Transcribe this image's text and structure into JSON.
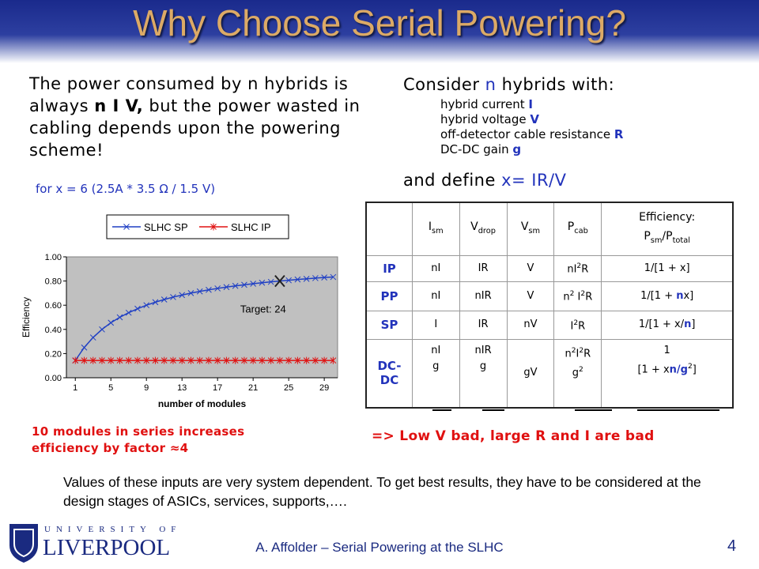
{
  "header": {
    "title": "Why Choose Serial Powering?"
  },
  "left": {
    "paragraph": [
      "The power consumed by n hybrids is always ",
      {
        "b": "n I V,"
      },
      " but the power wasted in cabling depends upon the powering scheme!"
    ],
    "example": "for x = 6 (2.5A * 3.5 Ω  / 1.5 V)",
    "note": "10 modules in series increases efficiency by factor ≈4"
  },
  "right": {
    "consider": [
      "Consider ",
      {
        "em": "n"
      },
      " hybrids with:"
    ],
    "items": [
      [
        "hybrid current ",
        {
          "em": "I"
        }
      ],
      [
        "hybrid voltage ",
        {
          "em": "V"
        }
      ],
      [
        "off-detector cable resistance ",
        {
          "em": "R"
        }
      ],
      [
        "DC-DC gain ",
        {
          "em": "g"
        }
      ]
    ],
    "define": [
      "and define ",
      {
        "em": "x= IR/V"
      }
    ],
    "note": "=> Low V bad, large R and I are bad"
  },
  "table": {
    "headers": [
      [
        [
          "I",
          {
            "sub": "sm"
          }
        ]
      ],
      [
        [
          "V",
          {
            "sub": "drop"
          }
        ]
      ],
      [
        [
          "V",
          {
            "sub": "sm"
          }
        ]
      ],
      [
        [
          "P",
          {
            "sub": "cab"
          }
        ]
      ],
      [
        [
          "Efficiency:"
        ],
        [
          "P",
          {
            "sub": "sm"
          },
          "/P",
          {
            "sub": "total"
          }
        ]
      ]
    ],
    "rows": [
      {
        "label": [
          "IP"
        ],
        "cells": [
          [
            [
              "nI"
            ]
          ],
          [
            [
              "IR"
            ]
          ],
          [
            [
              "V"
            ]
          ],
          [
            [
              "nI",
              {
                "sup": "2"
              },
              "R"
            ]
          ],
          [
            [
              "1/[1 + x]"
            ]
          ]
        ]
      },
      {
        "label": [
          "PP"
        ],
        "cells": [
          [
            [
              "nI"
            ]
          ],
          [
            [
              "nIR"
            ]
          ],
          [
            [
              "V"
            ]
          ],
          [
            [
              "n",
              {
                "sup": "2"
              },
              " I",
              {
                "sup": "2"
              },
              "R"
            ]
          ],
          [
            [
              "1/[1 + ",
              {
                "em": "n"
              },
              "x]"
            ]
          ]
        ]
      },
      {
        "label": [
          "SP"
        ],
        "cells": [
          [
            [
              "I"
            ]
          ],
          [
            [
              "IR"
            ]
          ],
          [
            [
              "nV"
            ]
          ],
          [
            [
              "I",
              {
                "sup": "2"
              },
              "R"
            ]
          ],
          [
            [
              "1/[1 + x/",
              {
                "em": "n"
              },
              "]"
            ]
          ]
        ]
      },
      {
        "label": [
          "DC-",
          "DC"
        ],
        "cells": [
          [
            [
              "nI"
            ],
            [
              "g"
            ]
          ],
          [
            [
              "nIR"
            ],
            [
              "g"
            ]
          ],
          [
            [
              "gV"
            ]
          ],
          [
            [
              "n",
              {
                "sup": "2"
              },
              "I",
              {
                "sup": "2"
              },
              "R"
            ],
            [
              "g",
              {
                "sup": "2"
              }
            ]
          ],
          [
            [
              "1"
            ],
            [
              "[1 + x",
              {
                "em": "n/g"
              },
              {
                "sup": "2"
              },
              "]"
            ]
          ]
        ]
      }
    ]
  },
  "chart": {
    "type": "line",
    "x_label": "number of modules",
    "y_label": "Efficiency",
    "x": [
      1,
      2,
      3,
      4,
      5,
      6,
      7,
      8,
      9,
      10,
      11,
      12,
      13,
      14,
      15,
      16,
      17,
      18,
      19,
      20,
      21,
      22,
      23,
      24,
      25,
      26,
      27,
      28,
      29,
      30
    ],
    "series": [
      {
        "name": "SLHC SP",
        "color": "#1f3fc4",
        "marker": "x",
        "values": [
          0.143,
          0.25,
          0.333,
          0.4,
          0.455,
          0.5,
          0.538,
          0.571,
          0.6,
          0.625,
          0.647,
          0.667,
          0.684,
          0.7,
          0.714,
          0.727,
          0.739,
          0.75,
          0.76,
          0.769,
          0.778,
          0.786,
          0.793,
          0.8,
          0.806,
          0.813,
          0.818,
          0.824,
          0.829,
          0.833
        ]
      },
      {
        "name": "SLHC IP",
        "color": "#e01010",
        "marker": "star",
        "values": [
          0.143,
          0.143,
          0.143,
          0.143,
          0.143,
          0.143,
          0.143,
          0.143,
          0.143,
          0.143,
          0.143,
          0.143,
          0.143,
          0.143,
          0.143,
          0.143,
          0.143,
          0.143,
          0.143,
          0.143,
          0.143,
          0.143,
          0.143,
          0.143,
          0.143,
          0.143,
          0.143,
          0.143,
          0.143,
          0.143
        ]
      }
    ],
    "xlim": [
      0,
      30.5
    ],
    "xticks": [
      1,
      5,
      9,
      13,
      17,
      21,
      25,
      29
    ],
    "ylim": [
      0,
      1
    ],
    "yticks": [
      {
        "value": 0,
        "label": "0.00"
      },
      {
        "value": 0.2,
        "label": "0.20"
      },
      {
        "value": 0.4,
        "label": "0.40"
      },
      {
        "value": 0.6,
        "label": "0.60"
      },
      {
        "value": 0.8,
        "label": "0.80"
      },
      {
        "value": 1,
        "label": "1.00"
      }
    ],
    "grid": false,
    "target": {
      "x": 24,
      "y": 0.8,
      "label": "Target: 24"
    }
  },
  "bottom": "Values of these inputs are very system dependent.  To get best results, they have to be considered at the design stages of ASICs, services, supports,….",
  "footer": {
    "university_top": "UNIVERSITY OF",
    "university_name": "LIVERPOOL",
    "text": "A. Affolder – Serial Powering at the SLHC",
    "page": "4"
  }
}
